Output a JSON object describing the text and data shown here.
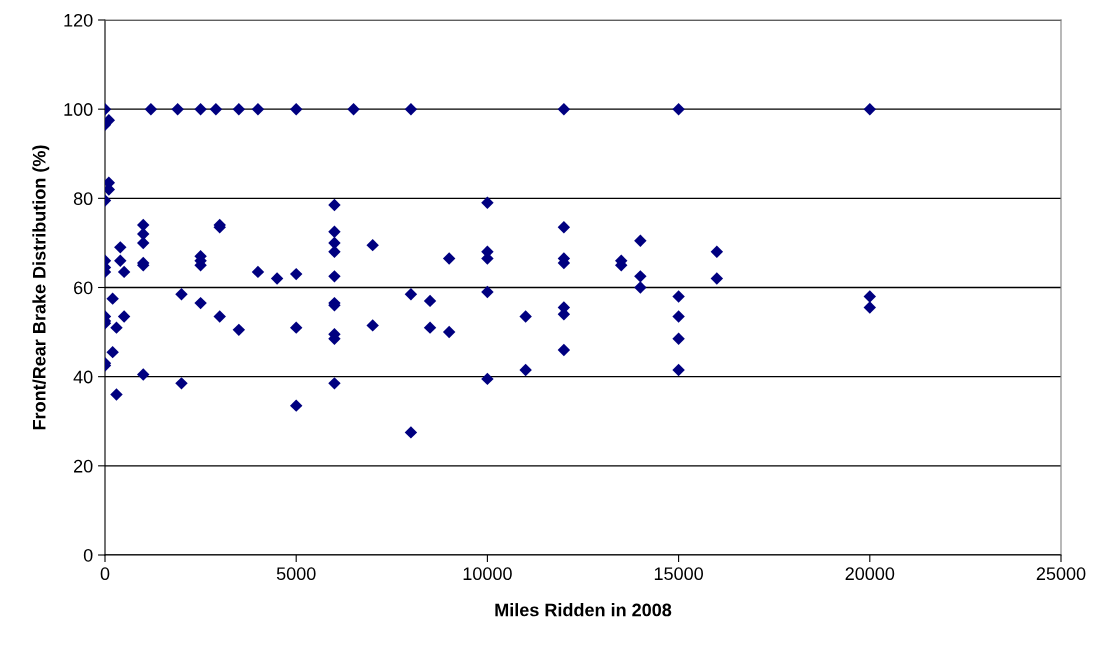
{
  "chart_data": {
    "type": "scatter",
    "xlabel": "Miles Ridden in 2008",
    "ylabel": "Front/Rear Brake Distribution (%)",
    "xlim": [
      0,
      25000
    ],
    "xticks": [
      0,
      5000,
      10000,
      15000,
      20000,
      25000
    ],
    "ylim": [
      0,
      120
    ],
    "yticks": [
      0,
      20,
      40,
      60,
      80,
      100,
      120
    ],
    "grid": "y",
    "marker": "diamond",
    "legend": false,
    "series": [
      {
        "color": "#000080",
        "x": [
          0,
          0,
          0,
          0,
          0,
          0,
          0,
          0,
          0,
          0,
          0,
          100,
          100,
          100,
          200,
          200,
          300,
          300,
          400,
          400,
          500,
          500,
          1000,
          1000,
          1000,
          1000,
          1000,
          1000,
          1200,
          1900,
          2000,
          2000,
          2500,
          2500,
          2500,
          2500,
          2500,
          2900,
          3000,
          3000,
          3000,
          3500,
          3500,
          4000,
          4000,
          4500,
          5000,
          5000,
          5000,
          5000,
          6000,
          6000,
          6000,
          6000,
          6000,
          6000,
          6000,
          6000,
          6000,
          6000,
          6500,
          7000,
          7000,
          8000,
          8000,
          8000,
          8500,
          8500,
          9000,
          9000,
          10000,
          10000,
          10000,
          10000,
          10000,
          11000,
          11000,
          12000,
          12000,
          12000,
          12000,
          12000,
          12000,
          12000,
          13500,
          13500,
          14000,
          14000,
          14000,
          15000,
          15000,
          15000,
          15000,
          15000,
          16000,
          16000,
          20000,
          20000,
          20000
        ],
        "values": [
          100,
          96.5,
          79.5,
          66,
          64.5,
          63.5,
          53.5,
          52.5,
          52,
          43,
          42.5,
          97.5,
          83.5,
          82,
          57.5,
          45.5,
          51,
          36,
          69,
          66,
          63.5,
          53.5,
          74,
          72,
          70,
          65.5,
          65,
          40.5,
          100,
          100,
          58.5,
          38.5,
          100,
          67,
          66,
          65,
          56.5,
          100,
          74,
          73.5,
          53.5,
          100,
          50.5,
          100,
          63.5,
          62,
          100,
          63,
          51,
          33.5,
          78.5,
          72.5,
          70,
          68,
          62.5,
          56.5,
          56,
          49.5,
          48.5,
          38.5,
          100,
          69.5,
          51.5,
          100,
          58.5,
          27.5,
          57,
          51,
          66.5,
          50,
          79,
          68,
          66.5,
          59,
          39.5,
          53.5,
          41.5,
          100,
          73.5,
          66.5,
          65.5,
          55.5,
          54,
          46,
          66,
          65,
          70.5,
          62.5,
          60,
          100,
          58,
          53.5,
          48.5,
          41.5,
          68,
          62,
          100,
          58,
          55.5
        ]
      }
    ]
  }
}
